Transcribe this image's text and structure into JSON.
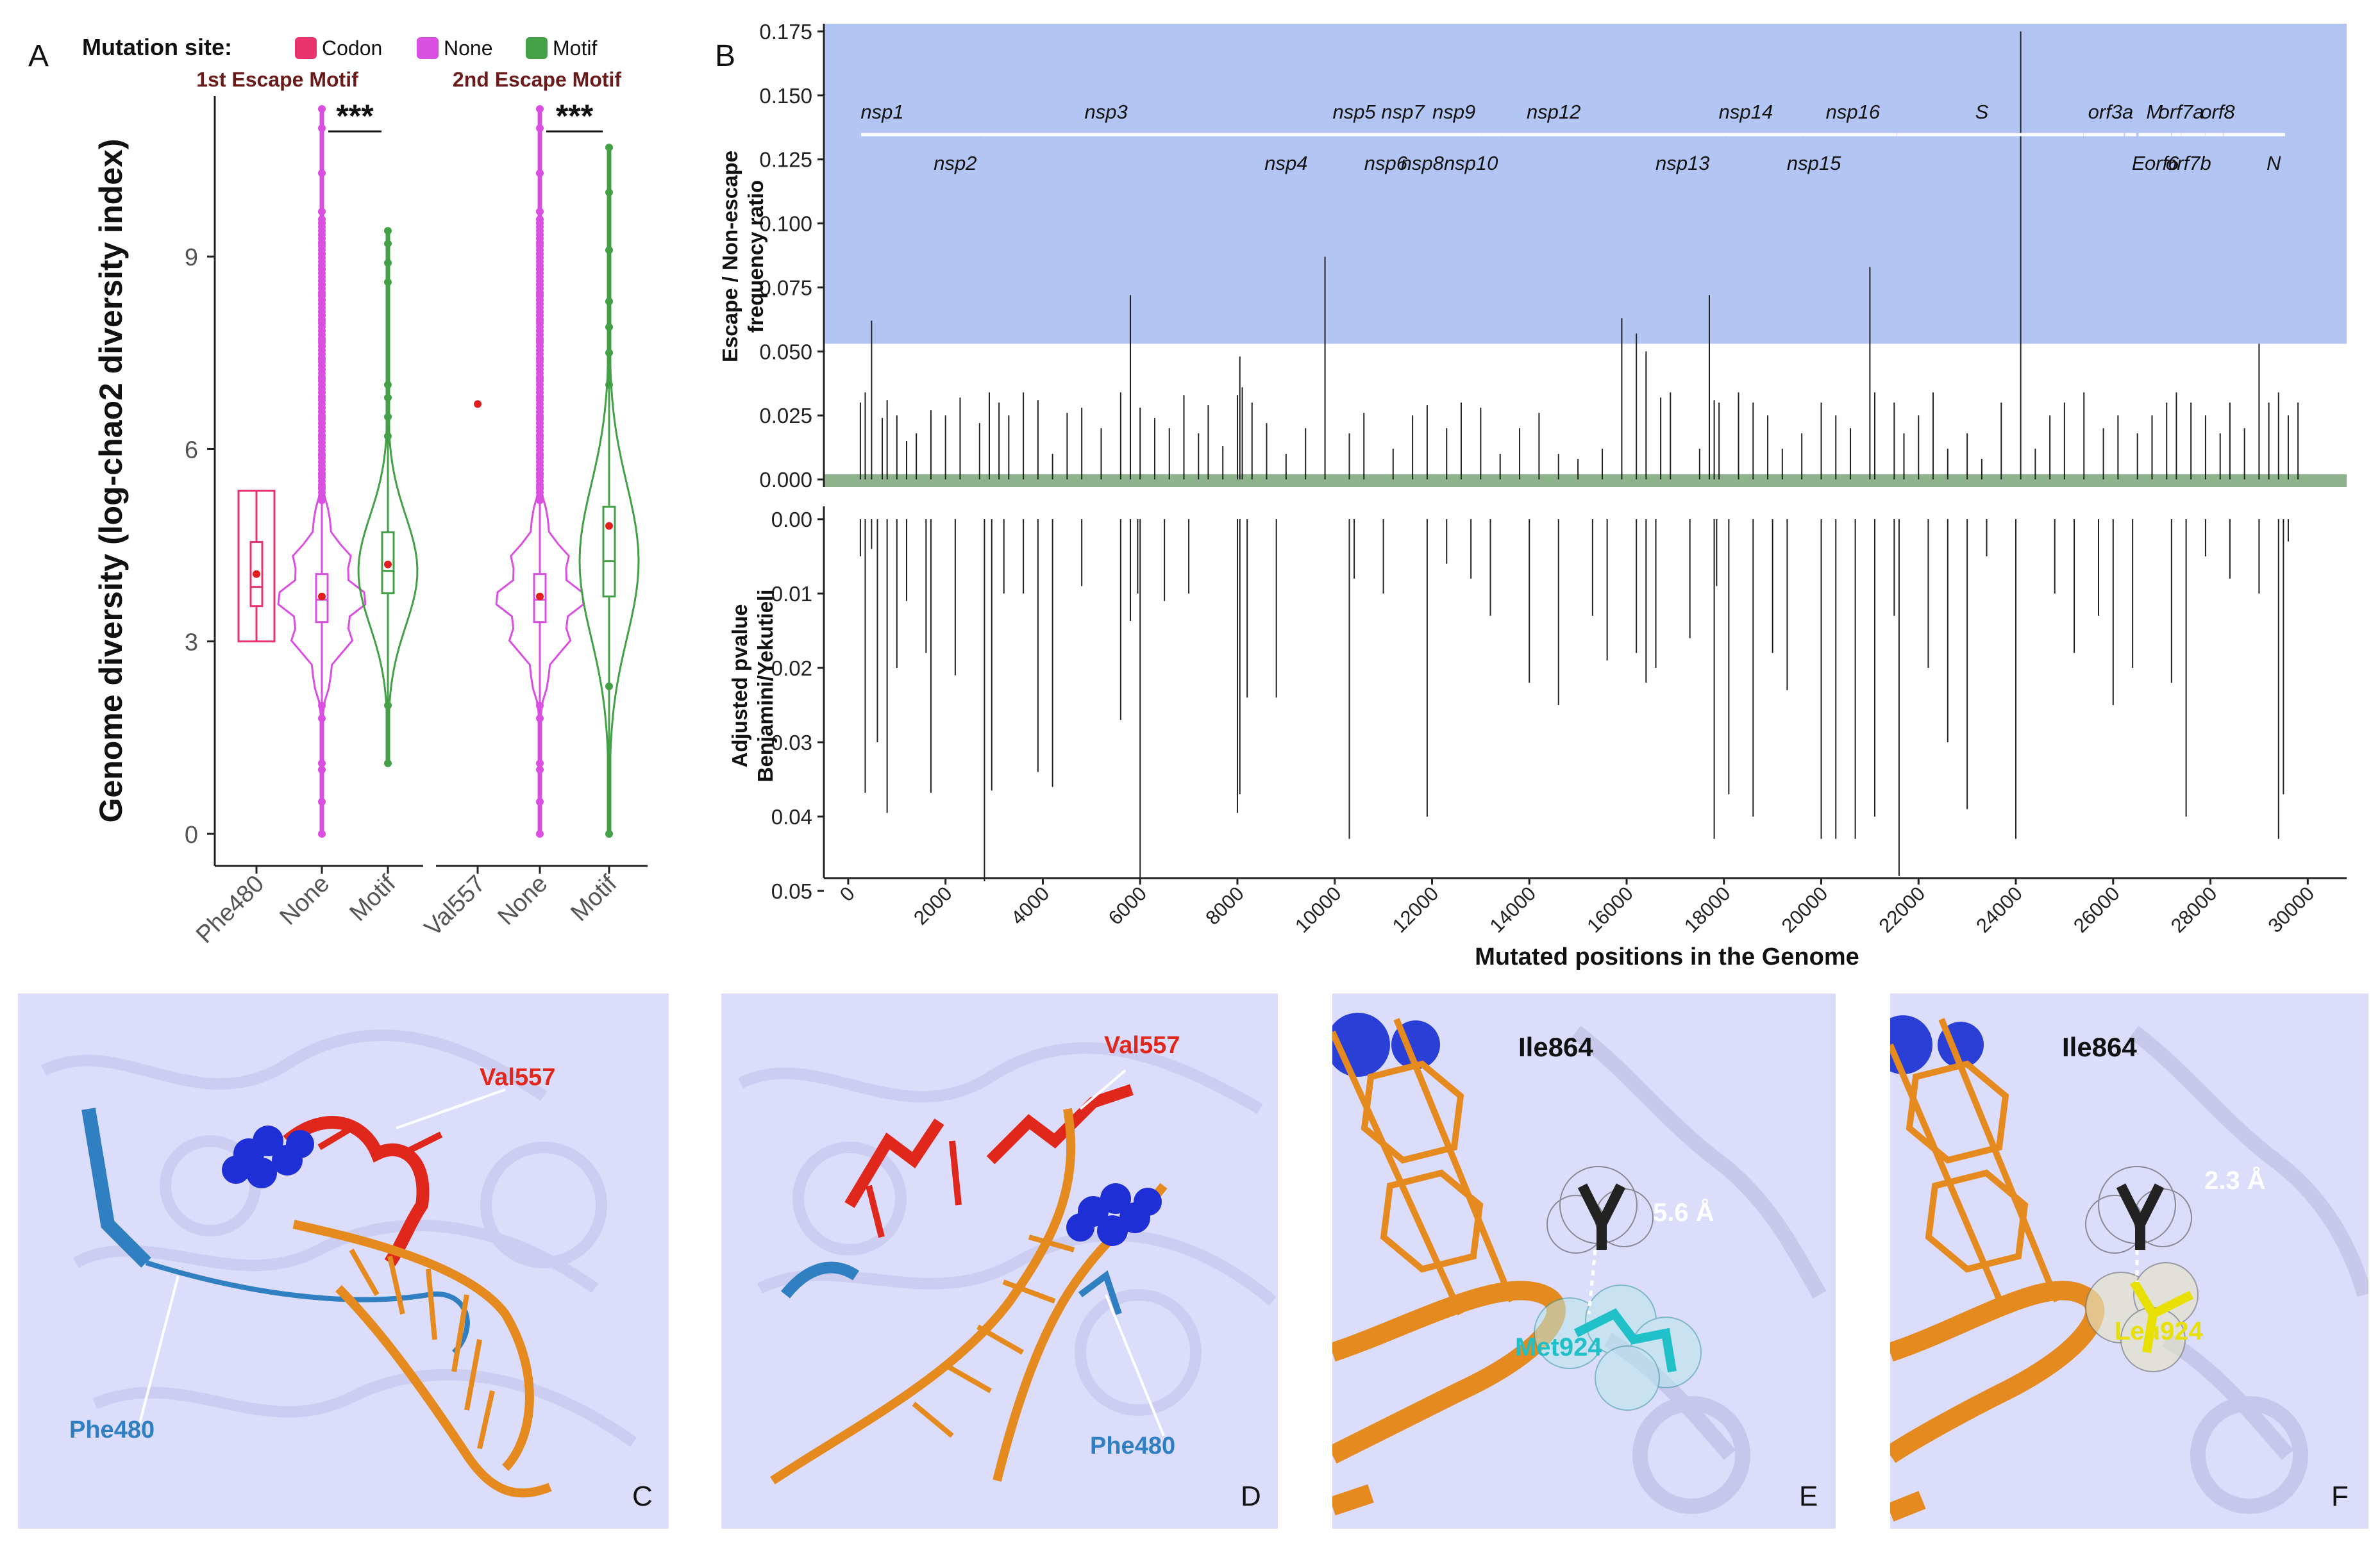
{
  "panels": {
    "a": "A",
    "b": "B",
    "c": "C",
    "d": "D",
    "e": "E",
    "f": "F"
  },
  "colors": {
    "codon": "#e8336d",
    "none": "#d94fe0",
    "motif": "#43a047",
    "mean": "#e02020",
    "escape_band": "#b3c6f3",
    "nonescape_band": "#8db28c",
    "rna": "#e58a1f",
    "red_motif": "#e0271c",
    "blue_motif": "#2f7fc1",
    "ligand": "#1f2fd6",
    "struct_bg": "#dcdcfb",
    "cyan": "#20c0c8",
    "yellow": "#e8e000"
  },
  "chart_data": [
    {
      "id": "A",
      "type": "violin",
      "ylabel": "Genome diversity (log-chao2 diversity index)",
      "ylim": [
        -0.5,
        11.5
      ],
      "yticks": [
        0,
        3,
        6,
        9
      ],
      "legend_title": "Mutation site:",
      "legend": [
        {
          "label": "Codon",
          "color": "#e8336d"
        },
        {
          "label": "None",
          "color": "#d94fe0"
        },
        {
          "label": "Motif",
          "color": "#43a047"
        }
      ],
      "groups": [
        {
          "title": "1st Escape Motif",
          "significance": "***",
          "categories": [
            "Phe480",
            "None",
            "Motif"
          ]
        },
        {
          "title": "2nd Escape Motif",
          "significance": "***",
          "categories": [
            "Val557",
            "None",
            "Motif"
          ]
        }
      ],
      "series": [
        {
          "group": 0,
          "category": "Phe480",
          "kind": "Codon",
          "min": 3.0,
          "q1": 3.55,
          "median": 3.85,
          "q3": 4.55,
          "max": 5.35,
          "mean": 4.05,
          "outliers": []
        },
        {
          "group": 0,
          "category": "None",
          "kind": "None",
          "min": 0.0,
          "q1": 3.3,
          "median": 3.65,
          "q3": 4.05,
          "max": 11.3,
          "mean": 3.7,
          "outliers": [
            0,
            0.5,
            1.0,
            1.1,
            1.8,
            2.0,
            5.2,
            5.4,
            5.6,
            5.9,
            6.2,
            6.5,
            6.8,
            7.1,
            7.4,
            7.7,
            8.0,
            8.4,
            8.8,
            9.2,
            9.7,
            10.3,
            11.0,
            11.3
          ]
        },
        {
          "group": 0,
          "category": "Motif",
          "kind": "Motif",
          "min": 1.1,
          "q1": 3.75,
          "median": 4.1,
          "q3": 4.7,
          "max": 9.4,
          "mean": 4.2,
          "outliers": [
            1.1,
            2.0,
            6.2,
            6.5,
            6.8,
            7.0,
            8.6,
            8.9,
            9.2,
            9.4
          ]
        },
        {
          "group": 1,
          "category": "Val557",
          "kind": "Codon",
          "min": 6.7,
          "q1": 6.7,
          "median": 6.7,
          "q3": 6.7,
          "max": 6.7,
          "mean": 6.7,
          "outliers": []
        },
        {
          "group": 1,
          "category": "None",
          "kind": "None",
          "min": 0.0,
          "q1": 3.3,
          "median": 3.65,
          "q3": 4.05,
          "max": 11.3,
          "mean": 3.7,
          "outliers": [
            0,
            0.5,
            1.0,
            1.1,
            1.8,
            2.0,
            5.2,
            5.4,
            5.6,
            5.9,
            6.2,
            6.5,
            6.8,
            7.1,
            7.4,
            7.7,
            8.0,
            8.4,
            8.8,
            9.2,
            9.7,
            10.3,
            11.0,
            11.3
          ]
        },
        {
          "group": 1,
          "category": "Motif",
          "kind": "Motif",
          "min": 0.0,
          "q1": 3.7,
          "median": 4.25,
          "q3": 5.1,
          "max": 10.7,
          "mean": 4.8,
          "outliers": [
            0,
            2.3,
            7.0,
            7.5,
            7.9,
            8.3,
            9.1,
            10.0,
            10.7
          ]
        }
      ]
    },
    {
      "id": "B-top",
      "type": "bar",
      "ylabel_lines": [
        "Escape / Non-escape",
        "frequency ratio"
      ],
      "ylim": [
        -0.003,
        0.178
      ],
      "yticks": [
        "0.000",
        "0.025",
        "0.050",
        "0.075",
        "0.100",
        "0.125",
        "0.150",
        "0.175"
      ],
      "escape_threshold": 0.053,
      "nonescape_threshold": 0.002,
      "xlim": [
        -500,
        30800
      ],
      "x": [
        250,
        350,
        480,
        700,
        800,
        1000,
        1200,
        1400,
        1700,
        2000,
        2300,
        2700,
        2900,
        3100,
        3300,
        3600,
        3900,
        4200,
        4500,
        4800,
        5200,
        5600,
        5800,
        6000,
        6300,
        6600,
        6900,
        7200,
        7400,
        7700,
        8000,
        8050,
        8100,
        8300,
        8600,
        9000,
        9400,
        9800,
        10300,
        10600,
        11200,
        11600,
        11900,
        12300,
        12600,
        13000,
        13400,
        13800,
        14200,
        14600,
        15000,
        15500,
        15900,
        16200,
        16400,
        16700,
        16900,
        17500,
        17700,
        17800,
        17900,
        18300,
        18600,
        18900,
        19200,
        19600,
        20000,
        20300,
        20600,
        21000,
        21100,
        21500,
        21700,
        22000,
        22300,
        22600,
        23000,
        23300,
        23700,
        24100,
        24400,
        24700,
        25000,
        25400,
        25800,
        26100,
        26500,
        26800,
        27100,
        27300,
        27600,
        27900,
        28200,
        28400,
        28700,
        29000,
        29200,
        29400,
        29600,
        29800
      ],
      "values": [
        0.03,
        0.034,
        0.062,
        0.024,
        0.031,
        0.025,
        0.015,
        0.018,
        0.027,
        0.025,
        0.032,
        0.022,
        0.034,
        0.03,
        0.025,
        0.034,
        0.031,
        0.01,
        0.026,
        0.028,
        0.02,
        0.034,
        0.072,
        0.028,
        0.024,
        0.02,
        0.033,
        0.018,
        0.029,
        0.013,
        0.033,
        0.048,
        0.036,
        0.03,
        0.022,
        0.01,
        0.02,
        0.087,
        0.018,
        0.026,
        0.012,
        0.025,
        0.029,
        0.02,
        0.03,
        0.028,
        0.01,
        0.02,
        0.026,
        0.01,
        0.008,
        0.012,
        0.063,
        0.057,
        0.05,
        0.032,
        0.034,
        0.012,
        0.072,
        0.031,
        0.03,
        0.034,
        0.03,
        0.025,
        0.012,
        0.018,
        0.03,
        0.025,
        0.02,
        0.083,
        0.034,
        0.03,
        0.018,
        0.025,
        0.034,
        0.012,
        0.018,
        0.008,
        0.03,
        0.175,
        0.012,
        0.025,
        0.03,
        0.034,
        0.02,
        0.025,
        0.018,
        0.025,
        0.03,
        0.034,
        0.03,
        0.025,
        0.018,
        0.03,
        0.02,
        0.053,
        0.03,
        0.034,
        0.025,
        0.03
      ],
      "genes_top": [
        {
          "name": "nsp1",
          "start": 266,
          "end": 805,
          "label_x": 700
        },
        {
          "name": "nsp3",
          "start": 2720,
          "end": 8554,
          "label_x": 5300
        },
        {
          "name": "nsp5",
          "start": 10055,
          "end": 10972,
          "label_x": 10400
        },
        {
          "name": "nsp7",
          "start": 11843,
          "end": 12091,
          "label_x": 11400
        },
        {
          "name": "nsp9",
          "start": 12686,
          "end": 13024,
          "label_x": 12450
        },
        {
          "name": "nsp12",
          "start": 13442,
          "end": 16236,
          "label_x": 14500
        },
        {
          "name": "nsp14",
          "start": 18040,
          "end": 19620,
          "label_x": 18450
        },
        {
          "name": "nsp16",
          "start": 20659,
          "end": 21552,
          "label_x": 20650
        },
        {
          "name": "S",
          "start": 21563,
          "end": 25384,
          "label_x": 23300
        },
        {
          "name": "orf3a",
          "start": 25393,
          "end": 26220,
          "label_x": 25950
        },
        {
          "name": "M",
          "start": 26523,
          "end": 27191,
          "label_x": 26850
        },
        {
          "name": "orf7a",
          "start": 27394,
          "end": 27759,
          "label_x": 27400
        },
        {
          "name": "orf8",
          "start": 27894,
          "end": 28259,
          "label_x": 28150
        }
      ],
      "genes_bottom": [
        {
          "name": "nsp2",
          "start": 806,
          "end": 2719,
          "label_x": 2200
        },
        {
          "name": "nsp4",
          "start": 8555,
          "end": 10054,
          "label_x": 9000
        },
        {
          "name": "nsp6",
          "start": 10973,
          "end": 11842,
          "label_x": 11050
        },
        {
          "name": "nsp8",
          "start": 12092,
          "end": 12685,
          "label_x": 11800
        },
        {
          "name": "nsp10",
          "start": 13025,
          "end": 13441,
          "label_x": 12800
        },
        {
          "name": "nsp13",
          "start": 16237,
          "end": 18039,
          "label_x": 17150
        },
        {
          "name": "nsp15",
          "start": 19621,
          "end": 20658,
          "label_x": 19850
        },
        {
          "name": "E",
          "start": 26245,
          "end": 26472,
          "label_x": 26520
        },
        {
          "name": "orf6",
          "start": 27202,
          "end": 27387,
          "label_x": 27000
        },
        {
          "name": "orf7b",
          "start": 27756,
          "end": 27887,
          "label_x": 27550
        },
        {
          "name": "N",
          "start": 28274,
          "end": 29533,
          "label_x": 29300
        }
      ]
    },
    {
      "id": "B-bottom",
      "type": "bar",
      "ylabel_lines": [
        "Adjusted pvalue",
        "Benjamini/Yekutieli"
      ],
      "ylim": [
        0.0,
        0.05
      ],
      "yticks": [
        "0.00",
        "0.01",
        "0.02",
        "0.03",
        "0.04",
        "0.05"
      ],
      "xlabel": "Mutated positions in the Genome",
      "xticks": [
        "0",
        "2000",
        "4000",
        "6000",
        "8000",
        "10000",
        "12000",
        "14000",
        "16000",
        "18000",
        "20000",
        "22000",
        "24000",
        "26000",
        "28000",
        "30000"
      ],
      "x": [
        250,
        350,
        480,
        600,
        800,
        1000,
        1200,
        1600,
        1700,
        2200,
        2800,
        2950,
        3200,
        3600,
        3900,
        4200,
        4800,
        5600,
        5800,
        5950,
        6000,
        6500,
        7000,
        8000,
        8050,
        8200,
        8800,
        10300,
        10400,
        11000,
        11900,
        12300,
        12800,
        13200,
        14000,
        14600,
        15300,
        15600,
        16200,
        16400,
        16600,
        17300,
        17800,
        17850,
        18100,
        18600,
        19000,
        19300,
        20000,
        20300,
        20700,
        21100,
        21500,
        21600,
        22200,
        22600,
        23000,
        23400,
        24000,
        24800,
        25200,
        25700,
        26000,
        26400,
        27200,
        27500,
        27900,
        28400,
        29000,
        29400,
        29500,
        29600
      ],
      "values": [
        0.005,
        0.0368,
        0.004,
        0.03,
        0.0395,
        0.02,
        0.011,
        0.018,
        0.0368,
        0.021,
        0.0487,
        0.0365,
        0.01,
        0.01,
        0.034,
        0.036,
        0.009,
        0.027,
        0.0137,
        0.01,
        0.0486,
        0.011,
        0.01,
        0.0395,
        0.037,
        0.024,
        0.024,
        0.043,
        0.008,
        0.01,
        0.04,
        0.006,
        0.008,
        0.013,
        0.022,
        0.025,
        0.013,
        0.019,
        0.018,
        0.022,
        0.02,
        0.016,
        0.043,
        0.009,
        0.037,
        0.04,
        0.018,
        0.023,
        0.043,
        0.043,
        0.043,
        0.04,
        0.013,
        0.048,
        0.02,
        0.03,
        0.039,
        0.005,
        0.043,
        0.01,
        0.018,
        0.013,
        0.025,
        0.02,
        0.022,
        0.04,
        0.005,
        0.008,
        0.01,
        0.043,
        0.037,
        0.003
      ]
    }
  ],
  "structures": {
    "c": {
      "labels": {
        "val557": "Val557",
        "phe480": "Phe480"
      }
    },
    "d": {
      "labels": {
        "val557": "Val557",
        "phe480": "Phe480"
      }
    },
    "e": {
      "labels": {
        "ile864": "Ile864",
        "met924": "Met924",
        "distance": "5.6 Å"
      }
    },
    "f": {
      "labels": {
        "ile864": "Ile864",
        "leu924": "Leu924",
        "distance": "2.3 Å"
      }
    }
  }
}
